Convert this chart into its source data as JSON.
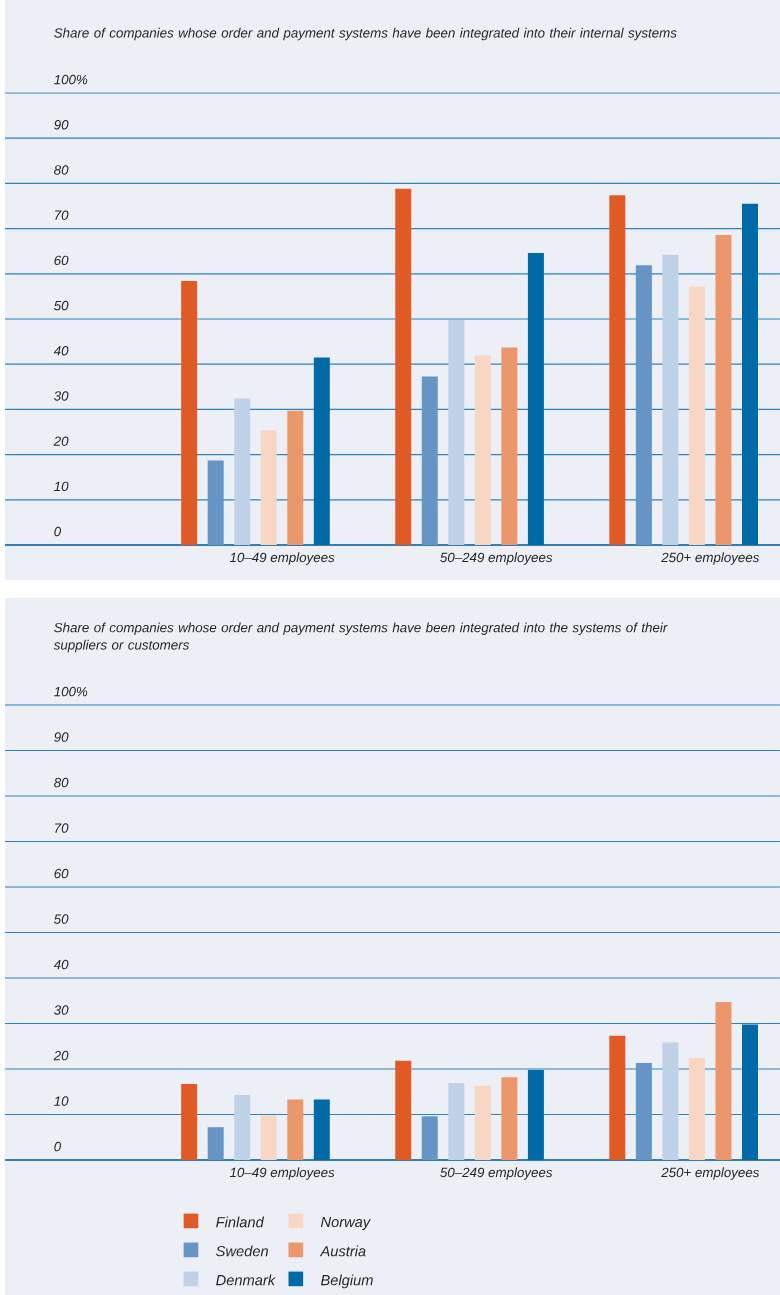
{
  "chart_data": [
    {
      "type": "bar",
      "title": "Share of companies whose order and payment systems have been integrated into their internal systems",
      "categories": [
        "10–49 employees",
        "50–249 employees",
        "250+ employees"
      ],
      "series": [
        {
          "color": "#e05a26",
          "values": [
            58.4,
            78.8,
            77.4
          ]
        },
        {
          "color": "#6694c5",
          "values": [
            18.7,
            37.3,
            61.9
          ]
        },
        {
          "color": "#c0d2e8",
          "values": [
            32.4,
            49.8,
            64.2
          ]
        },
        {
          "color": "#f7d6c4",
          "values": [
            25.4,
            41.9,
            57.2
          ]
        },
        {
          "color": "#ec976b",
          "values": [
            29.7,
            43.7,
            68.6
          ]
        },
        {
          "color": "#006aa7",
          "values": [
            41.5,
            64.6,
            75.5
          ]
        }
      ],
      "ylim": [
        0,
        100
      ],
      "yticks": [
        0,
        10,
        20,
        30,
        40,
        50,
        60,
        70,
        80,
        90,
        {
          "value": 100,
          "label": "100%"
        }
      ],
      "grid": "y"
    },
    {
      "type": "bar",
      "title": "Share of companies whose order and payment systems have been integrated into the systems of their suppliers or customers",
      "categories": [
        "10–49 employees",
        "50–249 employees",
        "250+ employees"
      ],
      "series": [
        {
          "name": "Finland",
          "color": "#e05a26",
          "values": [
            16.7,
            21.8,
            27.3
          ]
        },
        {
          "name": "Sweden",
          "color": "#6694c5",
          "values": [
            7.2,
            9.6,
            21.3
          ]
        },
        {
          "name": "Denmark",
          "color": "#c0d2e8",
          "values": [
            14.3,
            16.9,
            25.8
          ]
        },
        {
          "name": "Norway",
          "color": "#f7d6c4",
          "values": [
            9.8,
            16.3,
            22.4
          ]
        },
        {
          "name": "Austria",
          "color": "#ec976b",
          "values": [
            13.3,
            18.2,
            34.7
          ]
        },
        {
          "name": "Belgium",
          "color": "#006aa7",
          "values": [
            13.3,
            19.8,
            29.8
          ]
        }
      ],
      "ylim": [
        0,
        100
      ],
      "yticks": [
        0,
        10,
        20,
        30,
        40,
        50,
        60,
        70,
        80,
        90,
        {
          "value": 100,
          "label": "100%"
        }
      ],
      "grid": "y",
      "legend": "bottom"
    }
  ]
}
